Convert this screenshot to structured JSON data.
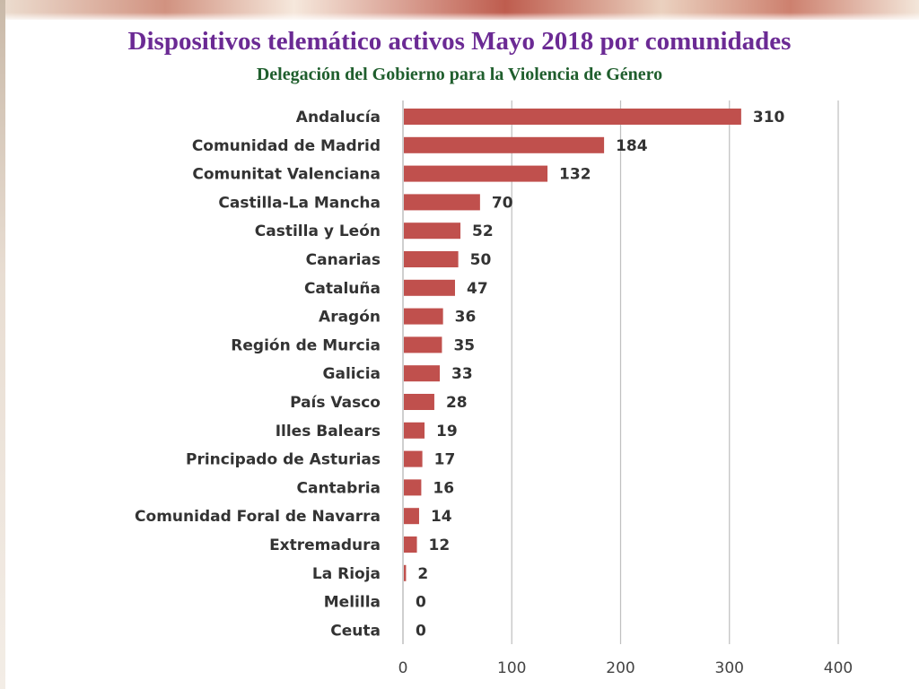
{
  "slide": {
    "title": "Dispositivos telemático activos Mayo 2018 por comunidades",
    "subtitle": "Delegación del Gobierno para la Violencia de Género"
  },
  "chart_data": {
    "type": "bar",
    "orientation": "horizontal",
    "categories": [
      "Andalucía",
      "Comunidad de Madrid",
      "Comunitat Valenciana",
      "Castilla-La Mancha",
      "Castilla y León",
      "Canarias",
      "Cataluña",
      "Aragón",
      "Región de Murcia",
      "Galicia",
      "País Vasco",
      "Illes Balears",
      "Principado de Asturias",
      "Cantabria",
      "Comunidad Foral de Navarra",
      "Extremadura",
      "La Rioja",
      "Melilla",
      "Ceuta"
    ],
    "values": [
      310,
      184,
      132,
      70,
      52,
      50,
      47,
      36,
      35,
      33,
      28,
      19,
      17,
      16,
      14,
      12,
      2,
      0,
      0
    ],
    "data_labels": [
      "310",
      "184",
      "132",
      "70",
      "52",
      "50",
      "47",
      "36",
      "35",
      "33",
      "28",
      "19",
      "17",
      "16",
      "14",
      "12",
      "2",
      "0",
      "0"
    ],
    "xlim": [
      0,
      400
    ],
    "xticks": [
      0,
      100,
      200,
      300,
      400
    ],
    "xtick_labels": [
      "0",
      "100",
      "200",
      "300",
      "400"
    ],
    "grid": "vertical",
    "legend": "none",
    "bar_color": "#c0504d",
    "grid_color": "#bfbfbf",
    "title": "Dispositivos telemático activos Mayo 2018 por comunidades",
    "subtitle": "Delegación del Gobierno para la Violencia de Género"
  }
}
